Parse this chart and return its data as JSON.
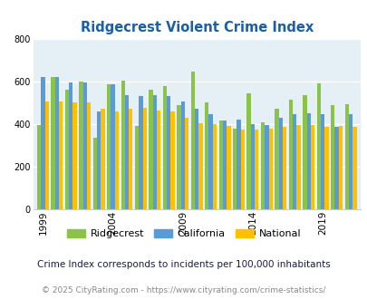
{
  "title": "Ridgecrest Violent Crime Index",
  "years": [
    1999,
    2000,
    2001,
    2002,
    2003,
    2004,
    2005,
    2006,
    2007,
    2008,
    2009,
    2010,
    2011,
    2012,
    2013,
    2014,
    2015,
    2016,
    2017,
    2018,
    2019,
    2020,
    2021
  ],
  "ridgecrest": [
    395,
    620,
    560,
    600,
    335,
    585,
    605,
    390,
    560,
    580,
    490,
    645,
    500,
    415,
    380,
    545,
    410,
    470,
    515,
    535,
    590,
    490,
    495
  ],
  "california": [
    620,
    620,
    595,
    595,
    460,
    585,
    535,
    530,
    535,
    530,
    505,
    470,
    445,
    415,
    420,
    400,
    395,
    430,
    445,
    450,
    445,
    385,
    445
  ],
  "national": [
    505,
    505,
    500,
    500,
    470,
    460,
    470,
    475,
    465,
    460,
    430,
    405,
    400,
    390,
    375,
    375,
    380,
    385,
    395,
    395,
    385,
    390,
    385
  ],
  "ridgecrest_color": "#8bc34a",
  "california_color": "#5b9bd5",
  "national_color": "#ffc000",
  "bg_color": "#e4f0f5",
  "ylim": [
    0,
    800
  ],
  "yticks": [
    0,
    200,
    400,
    600,
    800
  ],
  "xtick_years": [
    1999,
    2004,
    2009,
    2014,
    2019
  ],
  "legend_labels": [
    "Ridgecrest",
    "California",
    "National"
  ],
  "footnote1": "Crime Index corresponds to incidents per 100,000 inhabitants",
  "footnote2": "© 2025 CityRating.com - https://www.cityrating.com/crime-statistics/",
  "bar_width": 0.28,
  "title_color": "#1a5fa8",
  "footnote1_color": "#1a1a4a",
  "footnote2_color": "#888888",
  "grid_color": "#ffffff",
  "axis_color": "#cccccc"
}
